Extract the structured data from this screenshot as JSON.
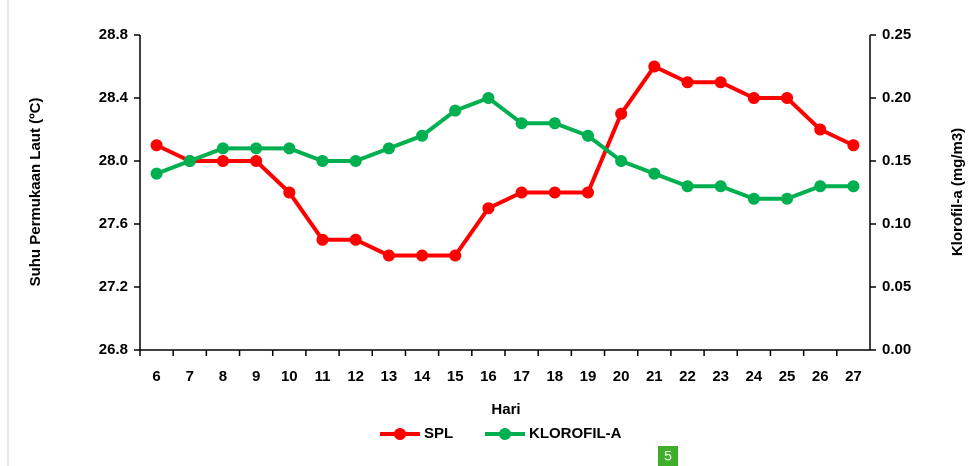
{
  "chart_data": {
    "type": "line",
    "x_label": "Hari",
    "y_label": "Suhu Permukaan Laut (ºC)",
    "y2_label": "Klorofil-a (mg/m3)",
    "categories": [
      "6",
      "7",
      "8",
      "9",
      "10",
      "11",
      "12",
      "13",
      "14",
      "15",
      "16",
      "17",
      "18",
      "19",
      "20",
      "21",
      "22",
      "23",
      "24",
      "25",
      "26",
      "27"
    ],
    "series": [
      {
        "name": "SPL",
        "color": "#ff0000",
        "values": [
          28.1,
          28.0,
          28.0,
          28.0,
          27.8,
          27.5,
          27.5,
          27.4,
          27.4,
          27.4,
          27.7,
          27.8,
          27.8,
          27.8,
          28.3,
          28.6,
          28.5,
          28.5,
          28.4,
          28.4,
          28.2,
          28.1
        ]
      },
      {
        "name": "KLOROFIL-A",
        "color": "#00b050",
        "axis": "y2",
        "values": [
          0.14,
          0.15,
          0.16,
          0.16,
          0.16,
          0.15,
          0.15,
          0.16,
          0.17,
          0.19,
          0.2,
          0.18,
          0.18,
          0.17,
          0.15,
          0.14,
          0.13,
          0.13,
          0.12,
          0.12,
          0.13,
          0.13
        ]
      }
    ],
    "ylim": [
      26.8,
      28.8
    ],
    "yticks": [
      26.8,
      27.2,
      27.6,
      {
        "value": 28,
        "label": "28.0"
      },
      28.4,
      28.8
    ],
    "y2lim": [
      0,
      0.25
    ],
    "y2ticks": [
      {
        "value": 0,
        "label": "0.00"
      },
      0.05,
      {
        "value": 0.1,
        "label": "0.10"
      },
      0.15,
      {
        "value": 0.2,
        "label": "0.20"
      },
      0.25
    ],
    "legend": "bottom",
    "annotations": [
      "5"
    ]
  }
}
